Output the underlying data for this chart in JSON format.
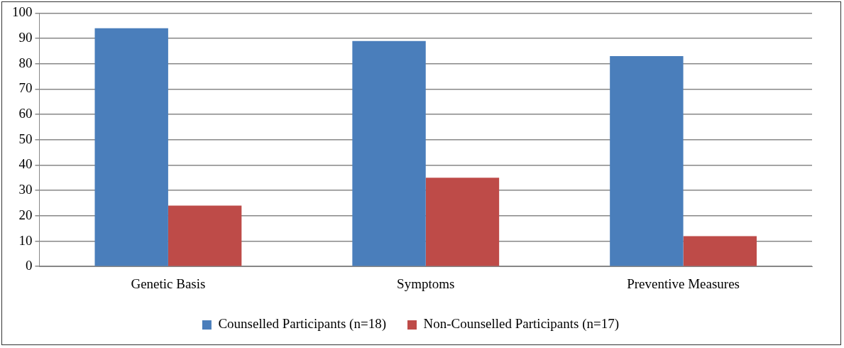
{
  "chart_data": {
    "type": "bar",
    "categories": [
      "Genetic Basis",
      "Symptoms",
      "Preventive Measures"
    ],
    "series": [
      {
        "name": "Counselled Participants (n=18)",
        "color": "#4a7ebb",
        "values": [
          94,
          89,
          83
        ]
      },
      {
        "name": "Non-Counselled Participants (n=17)",
        "color": "#be4b48",
        "values": [
          24,
          35,
          12
        ]
      }
    ],
    "ylim": [
      0,
      100
    ],
    "yticks": [
      0,
      10,
      20,
      30,
      40,
      50,
      60,
      70,
      80,
      90,
      100
    ],
    "grid": "y",
    "legend": "bottom"
  }
}
